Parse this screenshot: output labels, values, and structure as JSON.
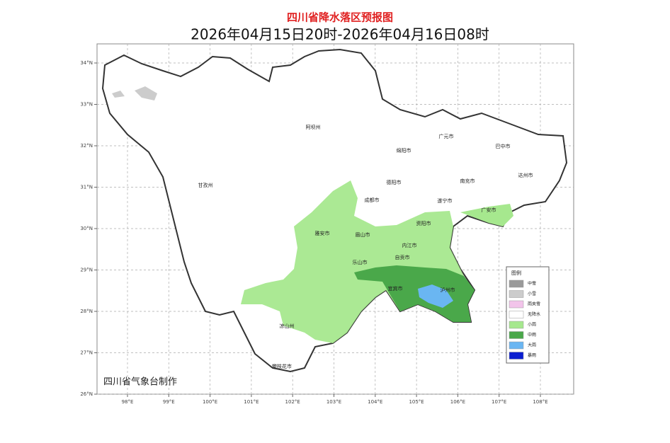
{
  "header": {
    "title": "四川省降水落区预报图",
    "subtitle": "2026年04月15日20时-2026年04月16日08时"
  },
  "axes": {
    "lat_ticks": [
      {
        "value": 34,
        "label": "34°N"
      },
      {
        "value": 33,
        "label": "33°N"
      },
      {
        "value": 32,
        "label": "32°N"
      },
      {
        "value": 31,
        "label": "31°N"
      },
      {
        "value": 30,
        "label": "30°N"
      },
      {
        "value": 29,
        "label": "29°N"
      },
      {
        "value": 28,
        "label": "28°N"
      },
      {
        "value": 27,
        "label": "27°N"
      },
      {
        "value": 26,
        "label": "26°N"
      }
    ],
    "lon_ticks": [
      {
        "value": 98,
        "label": "98°E"
      },
      {
        "value": 99,
        "label": "99°E"
      },
      {
        "value": 100,
        "label": "100°E"
      },
      {
        "value": 101,
        "label": "101°E"
      },
      {
        "value": 102,
        "label": "102°E"
      },
      {
        "value": 103,
        "label": "103°E"
      },
      {
        "value": 104,
        "label": "104°E"
      },
      {
        "value": 105,
        "label": "105°E"
      },
      {
        "value": 106,
        "label": "106°E"
      },
      {
        "value": 107,
        "label": "107°E"
      },
      {
        "value": 108,
        "label": "108°E"
      }
    ]
  },
  "cities": [
    "阿坝州",
    "甘孜州",
    "绵阳市",
    "广元市",
    "巴中市",
    "达州市",
    "南充市",
    "德阳市",
    "成都市",
    "遂宁市",
    "广安市",
    "资阳市",
    "雅安市",
    "眉山市",
    "内江市",
    "乐山市",
    "自贡市",
    "宜宾市",
    "泸州市",
    "凉山州",
    "攀枝花市"
  ],
  "legend": {
    "title": "图例",
    "items": [
      {
        "label": "中雪",
        "color": "#9a9a9a"
      },
      {
        "label": "小雪",
        "color": "#cccccc"
      },
      {
        "label": "雨夹雪",
        "color": "#f2c4ea"
      },
      {
        "label": "无降水",
        "color": "#ffffff"
      },
      {
        "label": "小雨",
        "color": "#a6e88e"
      },
      {
        "label": "中雨",
        "color": "#4aa84a"
      },
      {
        "label": "大雨",
        "color": "#6ab6f2"
      },
      {
        "label": "暴雨",
        "color": "#0a1ed0"
      }
    ]
  },
  "credit": "四川省气象台制作"
}
